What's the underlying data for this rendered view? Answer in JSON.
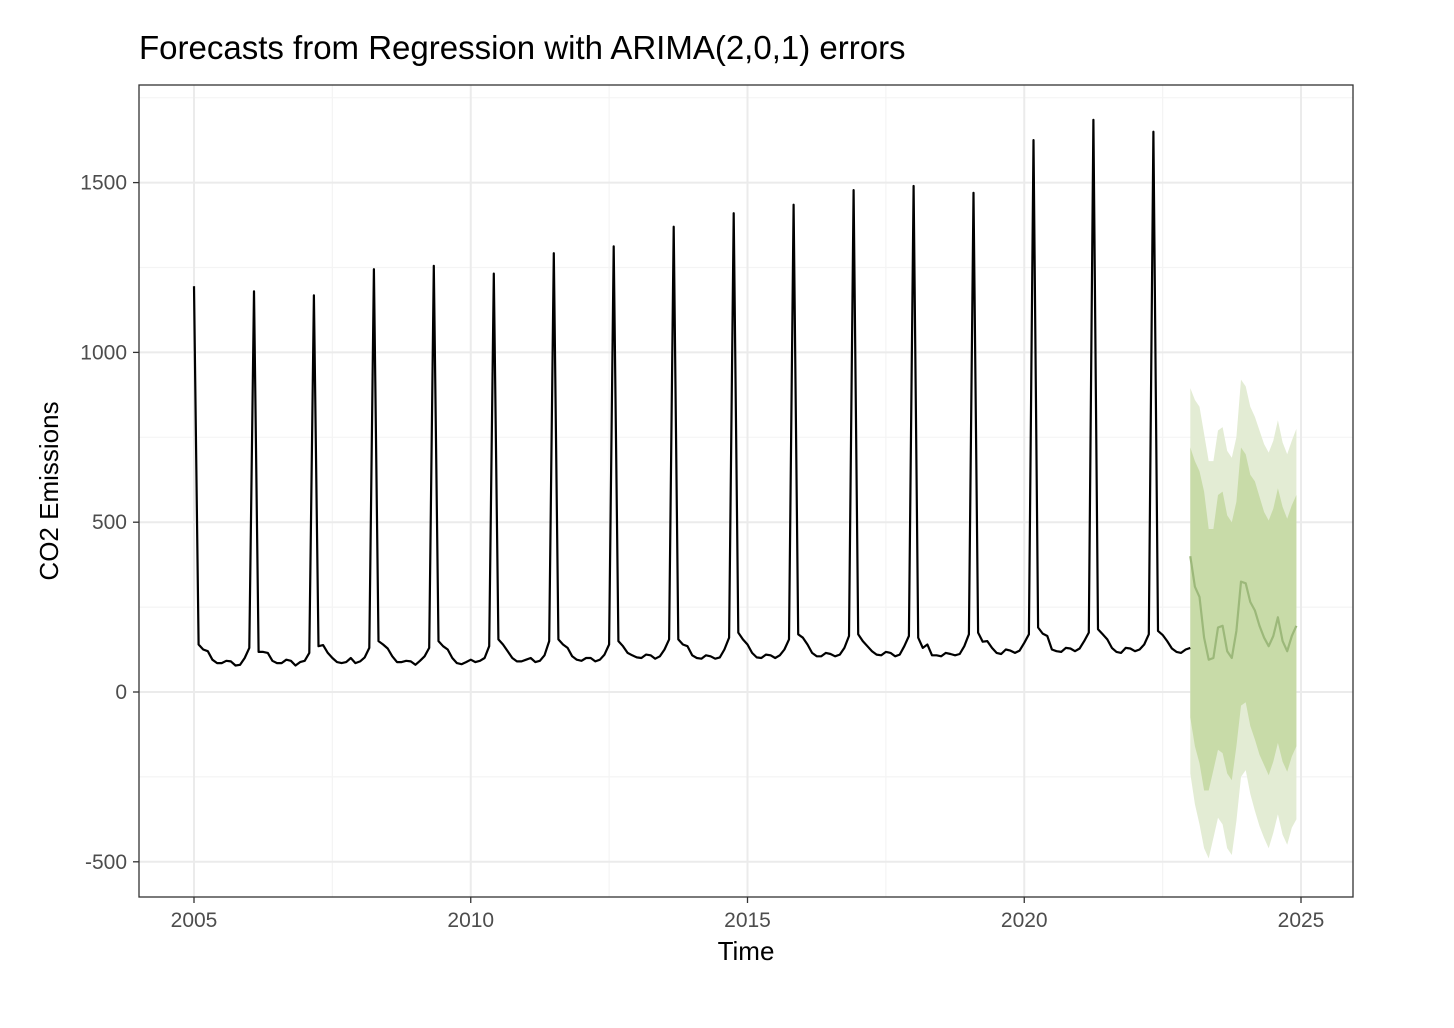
{
  "chart_data": {
    "type": "line",
    "title": "Forecasts from Regression with ARIMA(2,0,1) errors",
    "xlabel": "Time",
    "ylabel": "CO2 Emissions",
    "xlim": [
      2004.0,
      2025.9
    ],
    "ylim": [
      -600,
      1800
    ],
    "x_ticks": [
      2005,
      2010,
      2015,
      2020,
      2025
    ],
    "y_ticks": [
      -500,
      0,
      500,
      1000,
      1500
    ],
    "grid": true,
    "colors": {
      "series": "#000000",
      "forecast_line": "#9cb87a",
      "band_80": "#c8dba8",
      "band_95": "#e3ecd4",
      "grid_major": "#ebebeb",
      "grid_minor": "#f4f4f4",
      "panel_border": "#333333"
    },
    "series": [
      {
        "role": "observed",
        "start": 2005.0,
        "frequency": 12,
        "values": [
          1195,
          140,
          125,
          120,
          95,
          85,
          85,
          92,
          90,
          78,
          80,
          100,
          130,
          1180,
          118,
          118,
          115,
          92,
          85,
          85,
          95,
          92,
          78,
          88,
          92,
          115,
          1168,
          135,
          138,
          115,
          100,
          88,
          85,
          88,
          100,
          85,
          90,
          102,
          130,
          1245,
          150,
          140,
          128,
          105,
          88,
          88,
          92,
          90,
          80,
          92,
          105,
          130,
          1255,
          150,
          135,
          125,
          100,
          85,
          82,
          88,
          95,
          88,
          92,
          100,
          135,
          1232,
          155,
          140,
          120,
          100,
          90,
          90,
          95,
          100,
          88,
          92,
          108,
          150,
          1292,
          155,
          140,
          130,
          105,
          95,
          92,
          100,
          100,
          90,
          95,
          110,
          140,
          1312,
          150,
          135,
          115,
          108,
          102,
          100,
          110,
          108,
          98,
          105,
          125,
          155,
          1370,
          155,
          140,
          135,
          108,
          100,
          98,
          108,
          105,
          98,
          102,
          125,
          160,
          1410,
          175,
          155,
          140,
          115,
          102,
          100,
          110,
          108,
          100,
          108,
          125,
          155,
          1435,
          170,
          160,
          140,
          115,
          105,
          105,
          115,
          112,
          105,
          110,
          130,
          165,
          1478,
          170,
          150,
          135,
          120,
          110,
          108,
          118,
          115,
          105,
          110,
          135,
          165,
          1490,
          160,
          130,
          140,
          108,
          108,
          105,
          115,
          112,
          108,
          112,
          135,
          170,
          1470,
          175,
          148,
          150,
          130,
          115,
          112,
          125,
          122,
          115,
          122,
          145,
          170,
          1625,
          190,
          172,
          165,
          125,
          120,
          118,
          130,
          128,
          120,
          128,
          150,
          175,
          1685,
          185,
          170,
          155,
          130,
          118,
          115,
          130,
          128,
          120,
          125,
          140,
          170,
          1650,
          180,
          168,
          150,
          128,
          118,
          115,
          125,
          130
        ]
      },
      {
        "role": "forecast",
        "start": 2023.0,
        "frequency": 12,
        "values": [
          400,
          310,
          280,
          160,
          95,
          100,
          190,
          195,
          120,
          100,
          180,
          325,
          320,
          265,
          240,
          195,
          160,
          135,
          165,
          220,
          150,
          120,
          165,
          195
        ],
        "lower_80": [
          -75,
          -160,
          -210,
          -290,
          -290,
          -230,
          -170,
          -180,
          -240,
          -260,
          -160,
          -40,
          -30,
          -100,
          -140,
          -185,
          -215,
          -245,
          -205,
          -150,
          -205,
          -235,
          -190,
          -160
        ],
        "upper_80": [
          720,
          680,
          650,
          590,
          480,
          480,
          580,
          590,
          520,
          500,
          560,
          720,
          700,
          640,
          620,
          575,
          530,
          505,
          540,
          600,
          545,
          510,
          550,
          580
        ],
        "lower_95": [
          -240,
          -330,
          -390,
          -460,
          -490,
          -430,
          -370,
          -390,
          -460,
          -480,
          -380,
          -250,
          -230,
          -300,
          -350,
          -395,
          -430,
          -460,
          -415,
          -360,
          -420,
          -450,
          -400,
          -375
        ],
        "upper_95": [
          895,
          860,
          840,
          760,
          680,
          680,
          770,
          780,
          710,
          690,
          750,
          920,
          900,
          840,
          810,
          770,
          730,
          705,
          740,
          800,
          735,
          700,
          740,
          775
        ]
      }
    ]
  }
}
